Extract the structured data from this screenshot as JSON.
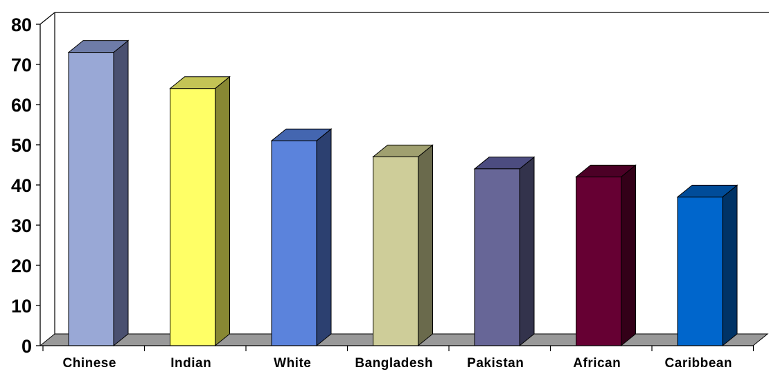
{
  "chart_data": {
    "type": "bar",
    "categories": [
      "Chinese",
      "Indian",
      "White",
      "Bangladesh",
      "Pakistan",
      "African",
      "Caribbean"
    ],
    "values": [
      73,
      64,
      51,
      47,
      44,
      42,
      37
    ],
    "colors": {
      "front": [
        "#99a8d6",
        "#ffff66",
        "#5b83dc",
        "#cecd99",
        "#676697",
        "#660033",
        "#0066cc"
      ],
      "side": [
        "#4a5070",
        "#888833",
        "#2c4070",
        "#6a6a4c",
        "#33334c",
        "#330018",
        "#003366"
      ],
      "top": [
        "#6e7ca8",
        "#c4c455",
        "#4466b0",
        "#a0a070",
        "#4c4c80",
        "#4c0026",
        "#004c99"
      ]
    },
    "ylim": [
      0,
      80
    ],
    "yticks": [
      0,
      10,
      20,
      30,
      40,
      50,
      60,
      70,
      80
    ],
    "title": "",
    "xlabel": "",
    "ylabel": "",
    "grid": false,
    "legend": "none"
  }
}
